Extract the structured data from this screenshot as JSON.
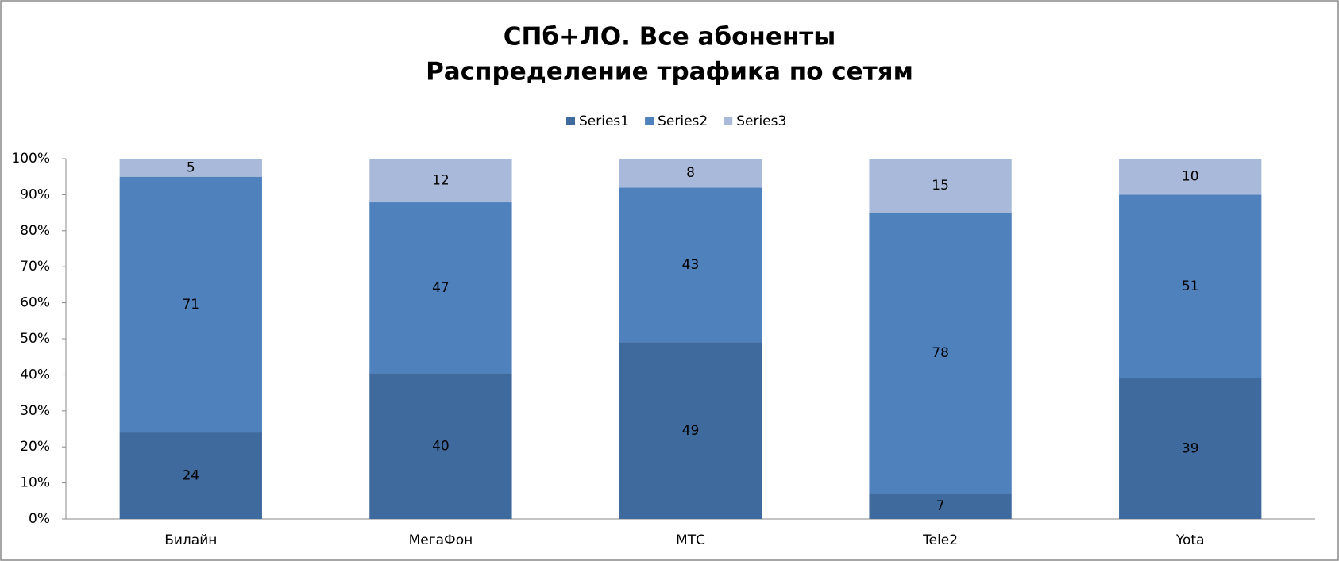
{
  "chart_data": {
    "type": "bar",
    "stacking": "percent",
    "title": "СПб+ЛО. Все абоненты",
    "subtitle": "Распределение трафика по сетям",
    "categories": [
      "Билайн",
      "МегаФон",
      "МТС",
      "Tele2",
      "Yota"
    ],
    "series": [
      {
        "name": "Series1",
        "color": "#3f6a9e",
        "label_color": "#ffffff",
        "values": [
          24,
          40,
          49,
          7,
          39
        ]
      },
      {
        "name": "Series2",
        "color": "#4f81bd",
        "label_color": "#ffffff",
        "values": [
          71,
          47,
          43,
          78,
          51
        ]
      },
      {
        "name": "Series3",
        "color": "#a9b9d9",
        "label_color": "#000000",
        "values": [
          5,
          12,
          8,
          15,
          10
        ]
      }
    ],
    "ylim": [
      0,
      100
    ],
    "yticks": [
      {
        "value": 0,
        "label": "0%"
      },
      {
        "value": 10,
        "label": "10%"
      },
      {
        "value": 20,
        "label": "20%"
      },
      {
        "value": 30,
        "label": "30%"
      },
      {
        "value": 40,
        "label": "40%"
      },
      {
        "value": 50,
        "label": "50%"
      },
      {
        "value": 60,
        "label": "60%"
      },
      {
        "value": 70,
        "label": "70%"
      },
      {
        "value": 80,
        "label": "80%"
      },
      {
        "value": 90,
        "label": "90%"
      },
      {
        "value": 100,
        "label": "100%"
      }
    ],
    "legend": "top",
    "grid": false
  }
}
